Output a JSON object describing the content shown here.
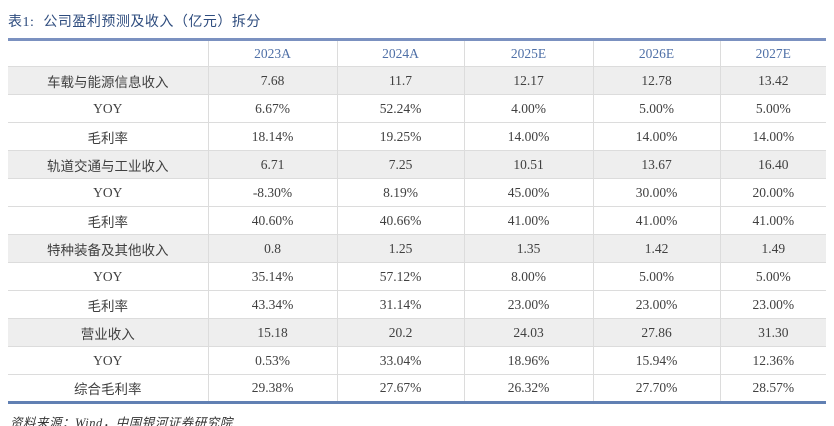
{
  "title": {
    "label": "表1:",
    "text": "公司盈利预测及收入（亿元）拆分"
  },
  "table": {
    "columns": [
      "",
      "2023A",
      "2024A",
      "2025E",
      "2026E",
      "2027E"
    ],
    "rows": [
      {
        "label": "车载与能源信息收入",
        "section": true,
        "values": [
          "7.68",
          "11.7",
          "12.17",
          "12.78",
          "13.42"
        ]
      },
      {
        "label": "YOY",
        "section": false,
        "values": [
          "6.67%",
          "52.24%",
          "4.00%",
          "5.00%",
          "5.00%"
        ]
      },
      {
        "label": "毛利率",
        "section": false,
        "values": [
          "18.14%",
          "19.25%",
          "14.00%",
          "14.00%",
          "14.00%"
        ]
      },
      {
        "label": "轨道交通与工业收入",
        "section": true,
        "values": [
          "6.71",
          "7.25",
          "10.51",
          "13.67",
          "16.40"
        ]
      },
      {
        "label": "YOY",
        "section": false,
        "values": [
          "-8.30%",
          "8.19%",
          "45.00%",
          "30.00%",
          "20.00%"
        ]
      },
      {
        "label": "毛利率",
        "section": false,
        "values": [
          "40.60%",
          "40.66%",
          "41.00%",
          "41.00%",
          "41.00%"
        ]
      },
      {
        "label": "特种装备及其他收入",
        "section": true,
        "values": [
          "0.8",
          "1.25",
          "1.35",
          "1.42",
          "1.49"
        ]
      },
      {
        "label": "YOY",
        "section": false,
        "values": [
          "35.14%",
          "57.12%",
          "8.00%",
          "5.00%",
          "5.00%"
        ]
      },
      {
        "label": "毛利率",
        "section": false,
        "values": [
          "43.34%",
          "31.14%",
          "23.00%",
          "23.00%",
          "23.00%"
        ]
      },
      {
        "label": "营业收入",
        "section": true,
        "values": [
          "15.18",
          "20.2",
          "24.03",
          "27.86",
          "31.30"
        ]
      },
      {
        "label": "YOY",
        "section": false,
        "values": [
          "0.53%",
          "33.04%",
          "18.96%",
          "15.94%",
          "12.36%"
        ]
      },
      {
        "label": "综合毛利率",
        "section": false,
        "values": [
          "29.38%",
          "27.67%",
          "26.32%",
          "27.70%",
          "28.57%"
        ]
      }
    ]
  },
  "footer": {
    "source_text": "资料来源：Wind，中国银河证券研究院"
  },
  "colors": {
    "title": "#2e4c7e",
    "header_text": "#4f70a7",
    "table_rule_top": "#7b91c0",
    "table_rule_bottom": "#6180b3",
    "grid_line": "#dcdcdc",
    "section_row_bg": "#eeeeee",
    "body_text": "#404040"
  }
}
